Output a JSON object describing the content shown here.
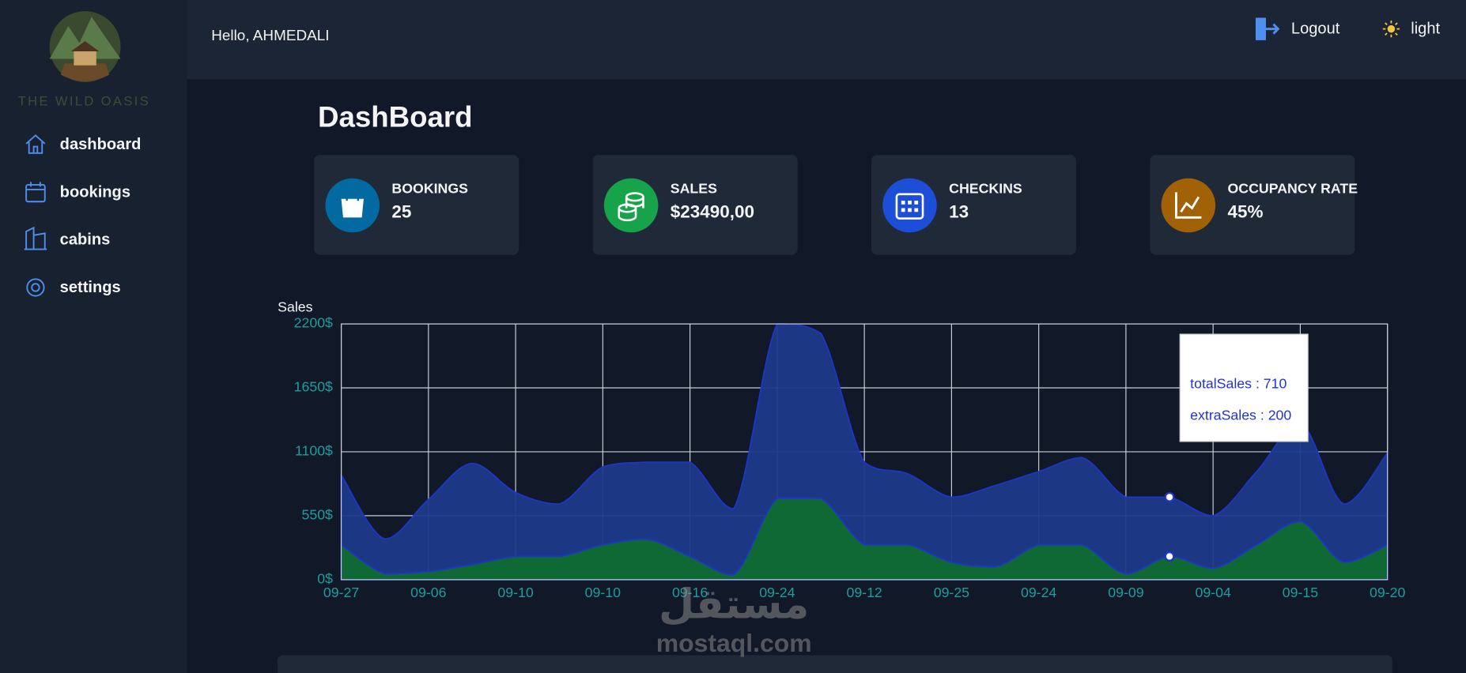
{
  "brand": "THE WILD OASIS",
  "nav": [
    "dashboard",
    "bookings",
    "cabins",
    "settings"
  ],
  "header": {
    "greeting": "Hello, AHMEDALI",
    "logout": "Logout",
    "theme": "light"
  },
  "page_title": "DashBoard",
  "stats": [
    {
      "label": "BOOKINGS",
      "value": "25"
    },
    {
      "label": "SALES",
      "value": "$23490,00"
    },
    {
      "label": "CHECKINS",
      "value": "13"
    },
    {
      "label": "OCCUPANCY RATE",
      "value": "45%"
    }
  ],
  "watermark": [
    "مستقل",
    "mostaql.com"
  ],
  "chart_data": {
    "type": "area",
    "title": "Sales",
    "categories": [
      "09-27",
      null,
      "09-06",
      null,
      "09-10",
      null,
      "09-10",
      null,
      "09-16",
      null,
      "09-24",
      null,
      "09-12",
      null,
      "09-25",
      null,
      "09-24",
      null,
      "09-09",
      null,
      "09-04",
      null,
      "09-15",
      null,
      "09-20"
    ],
    "series": [
      {
        "name": "totalSales",
        "color": "#1e3a8a",
        "values": [
          900,
          350,
          690,
          1000,
          750,
          650,
          970,
          1010,
          1010,
          610,
          2200,
          2120,
          1010,
          910,
          710,
          810,
          930,
          1050,
          710,
          710,
          550,
          930,
          1350,
          650,
          1090
        ]
      },
      {
        "name": "extraSales",
        "color": "#0f6b2f",
        "values": [
          300,
          50,
          70,
          130,
          200,
          200,
          300,
          350,
          200,
          40,
          700,
          700,
          300,
          300,
          150,
          110,
          300,
          300,
          50,
          200,
          100,
          300,
          500,
          150,
          300
        ]
      }
    ],
    "ylim": [
      0,
      2200
    ],
    "yticks": [
      {
        "value": 0,
        "label": "0$"
      },
      {
        "value": 550,
        "label": "550$"
      },
      {
        "value": 1100,
        "label": "1100$"
      },
      {
        "value": 1650,
        "label": "1650$"
      },
      {
        "value": 2200,
        "label": "2200$"
      }
    ],
    "grid": true,
    "tooltip": [
      "totalSales : 710",
      "extraSales : 200"
    ]
  }
}
